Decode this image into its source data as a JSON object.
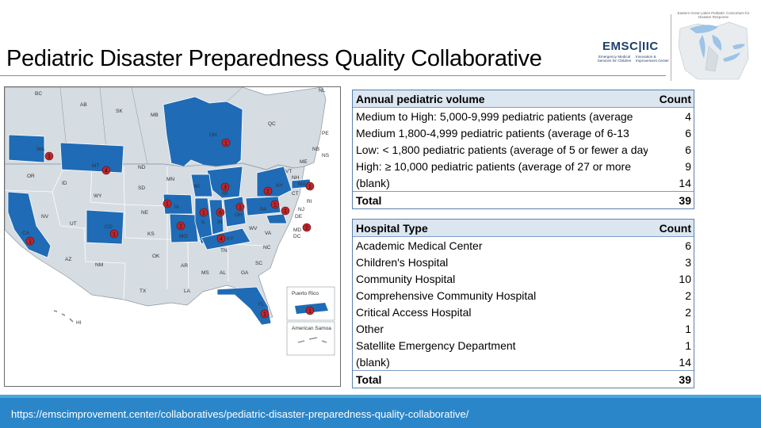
{
  "title": "Pediatric Disaster Preparedness Quality Collaborative",
  "logo": {
    "emsc_main": "EMSC|IIC",
    "emsc_left": "Emergency Medical Services for Children",
    "emsc_right": "Innovation & Improvement Center",
    "gl_caption": "Eastern Great Lakes Pediatric Consortium for Disaster Response"
  },
  "map": {
    "labels": [
      "BC",
      "AB",
      "SK",
      "MB",
      "ON",
      "QC",
      "NL",
      "PE",
      "NB",
      "NS",
      "ME",
      "VT",
      "NH",
      "MA",
      "RI",
      "CT",
      "NJ",
      "DE",
      "MD",
      "DC",
      "NY",
      "PA",
      "WA",
      "OR",
      "ID",
      "MT",
      "WY",
      "NV",
      "UT",
      "CO",
      "CA",
      "AZ",
      "NM",
      "ND",
      "SD",
      "NE",
      "KS",
      "OK",
      "TX",
      "MN",
      "IA",
      "MO",
      "AR",
      "LA",
      "WI",
      "IL",
      "MI",
      "IN",
      "OH",
      "KY",
      "TN",
      "MS",
      "AL",
      "GA",
      "FL",
      "SC",
      "NC",
      "VA",
      "WV",
      "HI",
      "Puerto Rico",
      "American Samoa"
    ],
    "markers": [
      "1",
      "1",
      "4",
      "1",
      "1",
      "1",
      "2",
      "1",
      "6",
      "3",
      "4",
      "1",
      "2",
      "1",
      "1",
      "1",
      "2",
      "1",
      "1",
      "1",
      "1",
      "1",
      "2"
    ],
    "colors": {
      "participating": "#1f6bb5",
      "other": "#d5dce2",
      "marker": "#c0262c"
    }
  },
  "table1": {
    "header": {
      "label": "Annual pediatric volume",
      "count": "Count"
    },
    "rows": [
      {
        "label": "Medium to High: 5,000-9,999 pediatric patients (average",
        "count": "4"
      },
      {
        "label": "Medium 1,800-4,999 pediatric patients (average of 6-13",
        "count": "6"
      },
      {
        "label": "Low: < 1,800 pediatric patients (average of 5 or fewer a day)",
        "count": "6"
      },
      {
        "label": "High: ≥ 10,000 pediatric patients (average of 27 or more",
        "count": "9"
      },
      {
        "label": "(blank)",
        "count": "14"
      }
    ],
    "total": {
      "label": "Total",
      "count": "39"
    }
  },
  "table2": {
    "header": {
      "label": "Hospital Type",
      "count": "Count"
    },
    "rows": [
      {
        "label": "Academic Medical Center",
        "count": "6"
      },
      {
        "label": "Children's Hospital",
        "count": "3"
      },
      {
        "label": "Community Hospital",
        "count": "10"
      },
      {
        "label": "Comprehensive Community Hospital",
        "count": "2"
      },
      {
        "label": "Critical Access Hospital",
        "count": "2"
      },
      {
        "label": "Other",
        "count": "1"
      },
      {
        "label": "Satellite Emergency Department",
        "count": "1"
      },
      {
        "label": "(blank)",
        "count": "14"
      }
    ],
    "total": {
      "label": "Total",
      "count": "39"
    }
  },
  "footer": {
    "url": "https://emscimprovement.center/collaboratives/pediatric-disaster-preparedness-quality-collaborative/"
  }
}
